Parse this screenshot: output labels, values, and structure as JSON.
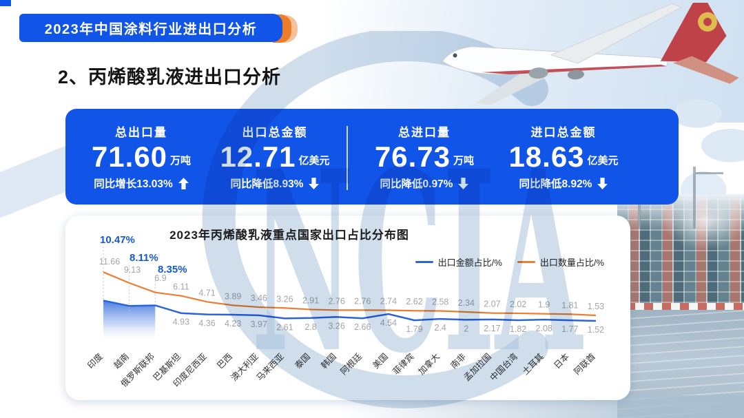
{
  "slide": {
    "banner_title": "2023年中国涂料行业进出口分析",
    "section_title": "2、丙烯酸乳液进出口分析",
    "watermark_text": "NCIA"
  },
  "stats": [
    {
      "label": "总出口量",
      "value": "71.60",
      "unit": "万吨",
      "change": "同比增长13.03%",
      "direction": "up"
    },
    {
      "label": "出口总金额",
      "value": "12.71",
      "unit": "亿美元",
      "change": "同比降低8.93%",
      "direction": "down"
    },
    {
      "label": "总进口量",
      "value": "76.73",
      "unit": "万吨",
      "change": "同比降低0.97%",
      "direction": "down"
    },
    {
      "label": "进口总金额",
      "value": "18.63",
      "unit": "亿美元",
      "change": "同比降低8.92%",
      "direction": "down"
    }
  ],
  "chart_data": {
    "type": "line",
    "title": "2023年丙烯酸乳液重点国家出口占比分布图",
    "categories": [
      "印度",
      "越南",
      "俄罗斯联邦",
      "巴基斯坦",
      "印度尼西亚",
      "巴西",
      "澳大利亚",
      "马来西亚",
      "泰国",
      "韩国",
      "阿根廷",
      "美国",
      "菲律宾",
      "加拿大",
      "南非",
      "孟加拉国",
      "中国台湾",
      "土耳其",
      "日本",
      "阿联酋"
    ],
    "series": [
      {
        "name": "出口金额占比/%",
        "color": "#2b63dd",
        "values": [
          10.47,
          8.11,
          8.35,
          4.93,
          4.36,
          4.23,
          3.97,
          2.61,
          2.8,
          3.26,
          2.66,
          4.54,
          1.79,
          2.4,
          2,
          2.17,
          1.82,
          2.08,
          1.77,
          1.52
        ]
      },
      {
        "name": "出口数量占比/%",
        "color": "#ed7d31",
        "values": [
          11.66,
          9.13,
          6.9,
          6.11,
          4.71,
          3.89,
          3.46,
          3.26,
          2.91,
          2.76,
          2.76,
          2.74,
          2.62,
          2.58,
          2.34,
          2.07,
          2.02,
          1.9,
          1.81,
          1.53
        ]
      }
    ],
    "highlighted_value_labels": [
      "10.47%",
      "8.11%",
      "8.35%"
    ],
    "legend_position": "top-right",
    "grid": false,
    "x_axis_rotation": -45
  },
  "colors": {
    "primary_blue": "#1155e8",
    "accent_orange": "#ef7d27",
    "line_blue": "#2b63dd",
    "line_orange": "#ed7d31",
    "label_gray": "#a5a5a5",
    "highlight_label_blue": "#1558d6",
    "watermark_blue": "#a9c3dd"
  }
}
